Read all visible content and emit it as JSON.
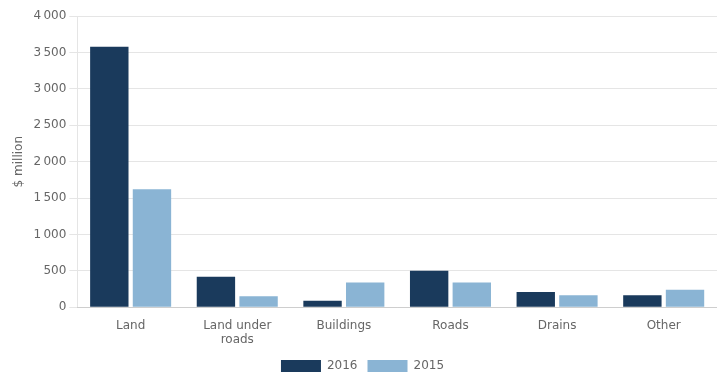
{
  "chart_data": {
    "type": "bar",
    "ylabel": "$ million",
    "categories": [
      "Land",
      "Land under\nroads",
      "Buildings",
      "Roads",
      "Drains",
      "Other"
    ],
    "series": [
      {
        "name": "2016",
        "color": "#1a3a5c",
        "values": [
          3580,
          420,
          90,
          500,
          210,
          165
        ]
      },
      {
        "name": "2015",
        "color": "#8ab4d4",
        "values": [
          1620,
          150,
          340,
          340,
          165,
          240
        ]
      }
    ],
    "ylim": [
      0,
      4000
    ],
    "yticks": [
      0,
      500,
      {
        "value": 1000,
        "label": "1 000"
      },
      {
        "value": 1500,
        "label": "1 500"
      },
      {
        "value": 2000,
        "label": "2 000"
      },
      {
        "value": 2500,
        "label": "2 500"
      },
      {
        "value": 3000,
        "label": "3 000"
      },
      {
        "value": 3500,
        "label": "3 500"
      },
      {
        "value": 4000,
        "label": "4 000"
      }
    ],
    "grid": true,
    "legend": "bottom"
  }
}
